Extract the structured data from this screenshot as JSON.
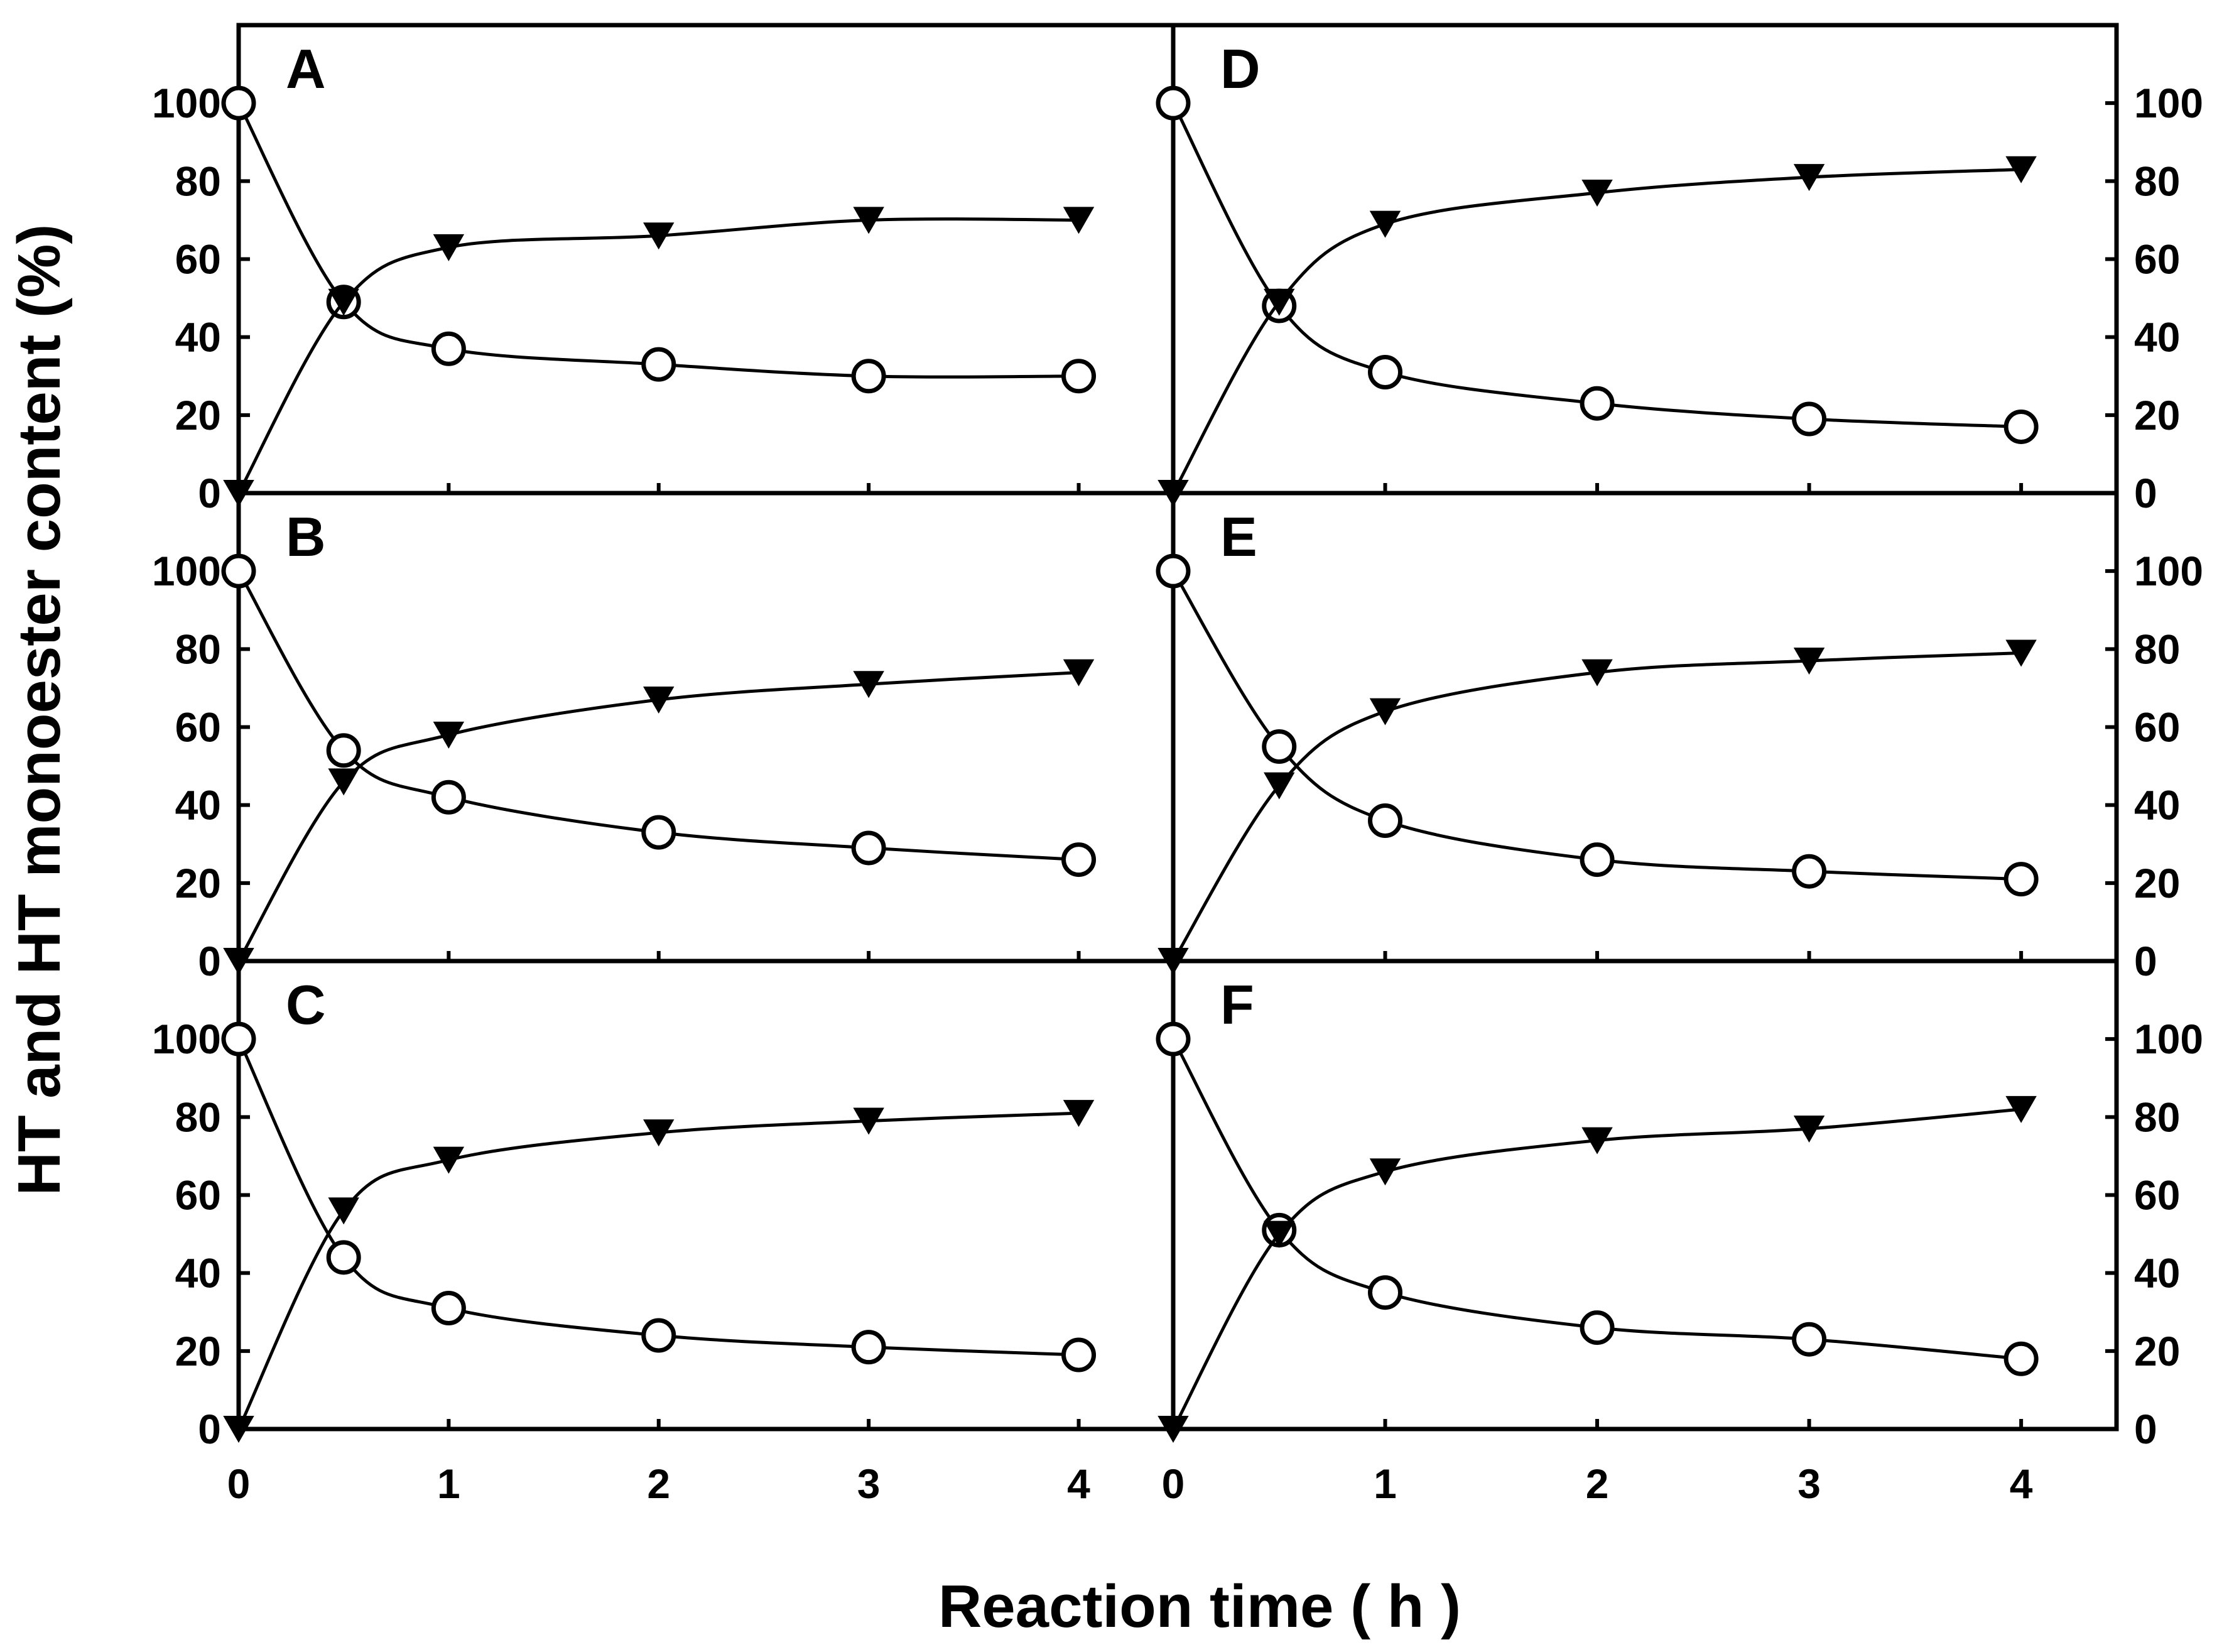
{
  "chart_data": {
    "type": "line",
    "xlabel": "Reaction time ( h )",
    "ylabel": "HT and HT monoester content (%)",
    "xlim": [
      0,
      4.45
    ],
    "ylim": [
      0,
      120
    ],
    "xticks": [
      0,
      1,
      2,
      3,
      4
    ],
    "yticks": [
      0,
      20,
      40,
      60,
      80,
      100
    ],
    "x": [
      0,
      0.5,
      1,
      2,
      3,
      4
    ],
    "series_markers": {
      "circle": "open-circle",
      "triangle": "filled-down-triangle"
    },
    "panels": [
      {
        "label": "A",
        "series": [
          {
            "marker": "open-circle",
            "values": [
              100,
              49,
              37,
              33,
              30,
              30
            ]
          },
          {
            "marker": "filled-down-triangle",
            "values": [
              0,
              49,
              63,
              66,
              70,
              70
            ]
          }
        ]
      },
      {
        "label": "B",
        "series": [
          {
            "marker": "open-circle",
            "values": [
              100,
              54,
              42,
              33,
              29,
              26
            ]
          },
          {
            "marker": "filled-down-triangle",
            "values": [
              0,
              46,
              58,
              67,
              71,
              74
            ]
          }
        ]
      },
      {
        "label": "C",
        "series": [
          {
            "marker": "open-circle",
            "values": [
              100,
              44,
              31,
              24,
              21,
              19
            ]
          },
          {
            "marker": "filled-down-triangle",
            "values": [
              0,
              56,
              69,
              76,
              79,
              81
            ]
          }
        ]
      },
      {
        "label": "D",
        "series": [
          {
            "marker": "open-circle",
            "values": [
              100,
              48,
              31,
              23,
              19,
              17
            ]
          },
          {
            "marker": "filled-down-triangle",
            "values": [
              0,
              49,
              69,
              77,
              81,
              83
            ]
          }
        ]
      },
      {
        "label": "E",
        "series": [
          {
            "marker": "open-circle",
            "values": [
              100,
              55,
              36,
              26,
              23,
              21
            ]
          },
          {
            "marker": "filled-down-triangle",
            "values": [
              0,
              45,
              64,
              74,
              77,
              79
            ]
          }
        ]
      },
      {
        "label": "F",
        "series": [
          {
            "marker": "open-circle",
            "values": [
              100,
              51,
              35,
              26,
              23,
              18
            ]
          },
          {
            "marker": "filled-down-triangle",
            "values": [
              0,
              50,
              66,
              74,
              77,
              82
            ]
          }
        ]
      }
    ]
  }
}
